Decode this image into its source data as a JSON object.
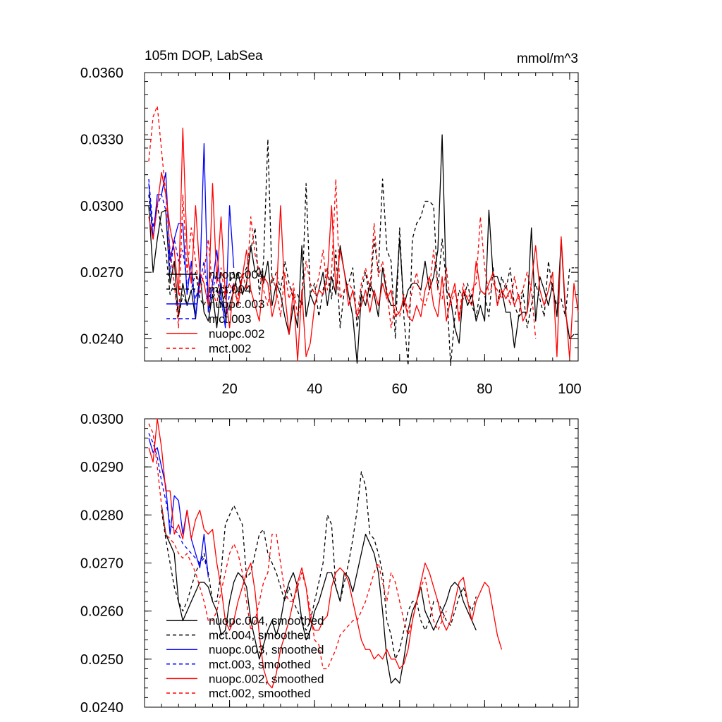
{
  "colors": {
    "black": "#000000",
    "blue": "#0000ff",
    "red": "#ff0000"
  },
  "chart_data": [
    {
      "type": "line",
      "title": "105m DOP, LabSea",
      "units": "mmol/m^3",
      "xlim": [
        0,
        102
      ],
      "ylim": [
        0.023,
        0.036
      ],
      "yticks": [
        0.024,
        0.027,
        0.03,
        0.033,
        0.036
      ],
      "ytick_labels": [
        "0.0240",
        "0.0270",
        "0.0300",
        "0.0330",
        "0.0360"
      ],
      "xticks": [
        20,
        40,
        60,
        80,
        100
      ],
      "xtick_labels": [
        "20",
        "40",
        "60",
        "80",
        "100"
      ],
      "legend": "bottom-left",
      "series": [
        {
          "name": "nuopc.004",
          "color": "black",
          "dash": "solid",
          "x_start": 1,
          "values": [
            0.03,
            0.027,
            0.0285,
            0.0297,
            0.0298,
            0.0265,
            0.0275,
            0.025,
            0.0265,
            0.0255,
            0.0262,
            0.0249,
            0.027,
            0.0252,
            0.0248,
            0.026,
            0.0245,
            0.0265,
            0.025,
            0.0255,
            0.0262,
            0.027,
            0.026,
            0.0265,
            0.0282,
            0.027,
            0.0272,
            0.0265,
            0.0275,
            0.0255,
            0.0265,
            0.026,
            0.025,
            0.0242,
            0.0255,
            0.0245,
            0.0282,
            0.025,
            0.026,
            0.0255,
            0.0262,
            0.027,
            0.0255,
            0.0268,
            0.026,
            0.0282,
            0.027,
            0.026,
            0.025,
            0.0229,
            0.026,
            0.0255,
            0.0265,
            0.026,
            0.025,
            0.0272,
            0.026,
            0.0255,
            0.0255,
            0.0285,
            0.0255,
            0.0262,
            0.0265,
            0.0265,
            0.0262,
            0.0275,
            0.0262,
            0.0268,
            0.028,
            0.0332,
            0.0262,
            0.0258,
            0.0245,
            0.0238,
            0.0262,
            0.0255,
            0.026,
            0.0248,
            0.0255,
            0.0248,
            0.0298,
            0.0268,
            0.0268,
            0.0262,
            0.0252,
            0.0252,
            0.0236,
            0.025,
            0.0252,
            0.0252,
            0.029,
            0.0248,
            0.0268,
            0.0262,
            0.0255,
            0.0265,
            0.025,
            0.0285,
            0.0252,
            0.024,
            0.0242
          ]
        },
        {
          "name": "mct.004",
          "color": "black",
          "dash": "dashed",
          "x_start": 1,
          "values": [
            0.0305,
            0.0285,
            0.03,
            0.029,
            0.028,
            0.026,
            0.0265,
            0.025,
            0.026,
            0.0255,
            0.0262,
            0.027,
            0.0258,
            0.0255,
            0.026,
            0.0258,
            0.0262,
            0.0255,
            0.026,
            0.0265,
            0.027,
            0.026,
            0.0268,
            0.0272,
            0.028,
            0.029,
            0.026,
            0.0275,
            0.033,
            0.0265,
            0.027,
            0.0262,
            0.0275,
            0.0265,
            0.0258,
            0.026,
            0.0255,
            0.031,
            0.026,
            0.0265,
            0.025,
            0.0262,
            0.0272,
            0.0258,
            0.028,
            0.0245,
            0.0262,
            0.0265,
            0.0272,
            0.0245,
            0.0262,
            0.027,
            0.0258,
            0.0285,
            0.027,
            0.0312,
            0.028,
            0.0275,
            0.024,
            0.029,
            0.025,
            0.0228,
            0.0285,
            0.0292,
            0.0295,
            0.0302,
            0.0302,
            0.03,
            0.0262,
            0.0285,
            0.0265,
            0.0228,
            0.025,
            0.0262,
            0.0258,
            0.0265,
            0.0255,
            0.025,
            0.0262,
            0.026,
            0.025,
            0.0272,
            0.0255,
            0.0268,
            0.0262,
            0.0272,
            0.0255,
            0.025,
            0.0262,
            0.0245,
            0.0255,
            0.0265,
            0.0258,
            0.025,
            0.0275,
            0.0262,
            0.0255,
            0.0258,
            0.025,
            0.0272,
            0.0272
          ]
        },
        {
          "name": "nuopc.003",
          "color": "blue",
          "dash": "solid",
          "x_start": 1,
          "values": [
            0.031,
            0.0285,
            0.0305,
            0.0305,
            0.0315,
            0.0275,
            0.0285,
            0.0292,
            0.0292,
            0.026,
            0.0275,
            0.025,
            0.0265,
            0.0328,
            0.0252,
            0.0265,
            0.028,
            0.026,
            0.0245,
            0.03,
            0.0272
          ]
        },
        {
          "name": "mct.003",
          "color": "blue",
          "dash": "dashed",
          "x_start": 1,
          "values": [
            0.0312,
            0.029,
            0.03,
            0.0305,
            0.0298,
            0.027,
            0.0285,
            0.0275,
            0.028,
            0.0265,
            0.027,
            0.0258,
            0.0265,
            0.0275,
            0.0258,
            0.0262,
            0.027,
            0.0255,
            0.025,
            0.026,
            0.0265
          ]
        },
        {
          "name": "nuopc.002",
          "color": "red",
          "dash": "solid",
          "x_start": 1,
          "values": [
            0.0295,
            0.0285,
            0.03,
            0.0315,
            0.0305,
            0.029,
            0.028,
            0.026,
            0.0335,
            0.028,
            0.0265,
            0.03,
            0.027,
            0.0265,
            0.0255,
            0.031,
            0.0265,
            0.0295,
            0.026,
            0.0245,
            0.0265,
            0.0255,
            0.0268,
            0.028,
            0.0262,
            0.0255,
            0.0248,
            0.0268,
            0.0265,
            0.025,
            0.0258,
            0.03,
            0.026,
            0.0242,
            0.0262,
            0.023,
            0.0262,
            0.0232,
            0.0238,
            0.0255,
            0.0262,
            0.026,
            0.0268,
            0.03,
            0.0262,
            0.028,
            0.027,
            0.0255,
            0.0262,
            0.025,
            0.0255,
            0.0262,
            0.0252,
            0.0262,
            0.0255,
            0.0265,
            0.0258,
            0.0262,
            0.025,
            0.0252,
            0.0258,
            0.025,
            0.0248,
            0.0255,
            0.025,
            0.0262,
            0.0268,
            0.0255,
            0.025,
            0.0268,
            0.0248,
            0.0258,
            0.0265,
            0.0248,
            0.0262,
            0.0258,
            0.0255,
            0.0275,
            0.0262,
            0.026,
            0.0265,
            0.027,
            0.0255,
            0.0262,
            0.0258,
            0.0262,
            0.0255,
            0.026,
            0.0248,
            0.0252,
            0.0265,
            0.0282,
            0.0262,
            0.0255,
            0.0262,
            0.027,
            0.0232,
            0.0286,
            0.0255,
            0.0231,
            0.0265,
            0.0252
          ]
        },
        {
          "name": "mct.002",
          "color": "red",
          "dash": "dashed",
          "x_start": 1,
          "values": [
            0.032,
            0.034,
            0.0345,
            0.0325,
            0.0305,
            0.028,
            0.0265,
            0.0245,
            0.0305,
            0.027,
            0.029,
            0.0275,
            0.026,
            0.027,
            0.0285,
            0.0262,
            0.0255,
            0.0272,
            0.0258,
            0.0265,
            0.026,
            0.0258,
            0.027,
            0.0262,
            0.0295,
            0.0278,
            0.027,
            0.0262,
            0.0255,
            0.0268,
            0.0262,
            0.025,
            0.027,
            0.0258,
            0.0265,
            0.025,
            0.0258,
            0.0275,
            0.0265,
            0.026,
            0.0268,
            0.028,
            0.0262,
            0.027,
            0.0312,
            0.0258,
            0.0262,
            0.0265,
            0.0262,
            0.025,
            0.0265,
            0.0272,
            0.0262,
            0.0292,
            0.0268,
            0.0275,
            0.0262,
            0.0245,
            0.0255,
            0.025,
            0.026,
            0.0252,
            0.0262,
            0.027,
            0.0258,
            0.0255,
            0.0262,
            0.028,
            0.0262,
            0.0258,
            0.0272,
            0.0255,
            0.0262,
            0.025,
            0.0265,
            0.0258,
            0.0262,
            0.0265,
            0.0295,
            0.0272,
            0.026,
            0.0265,
            0.0262,
            0.0258,
            0.0265,
            0.0255,
            0.0268,
            0.0258,
            0.0262,
            0.027,
            0.0262,
            0.024
          ]
        }
      ]
    },
    {
      "type": "line",
      "title": "",
      "xlim": [
        0,
        102
      ],
      "ylim": [
        0.024,
        0.03
      ],
      "yticks": [
        0.024,
        0.025,
        0.026,
        0.027,
        0.028,
        0.029,
        0.03
      ],
      "ytick_labels": [
        "0.0240",
        "0.0250",
        "0.0260",
        "0.0270",
        "0.0280",
        "0.0290",
        "0.0300"
      ],
      "xticks": [
        20,
        40,
        60,
        80,
        100
      ],
      "legend": "bottom-left",
      "series": [
        {
          "name": "nuopc.004, smoothed",
          "color": "black",
          "dash": "solid",
          "x_start": 4,
          "values": [
            0.0282,
            0.0276,
            0.0274,
            0.0272,
            0.0262,
            0.0258,
            0.026,
            0.0262,
            0.0264,
            0.0266,
            0.0266,
            0.0265,
            0.0262,
            0.026,
            0.0255,
            0.0256,
            0.0262,
            0.0266,
            0.0268,
            0.0267,
            0.0265,
            0.0258,
            0.0254,
            0.025,
            0.0253,
            0.0256,
            0.0258,
            0.0255,
            0.0258,
            0.0263,
            0.0266,
            0.0268,
            0.0265,
            0.0258,
            0.0254,
            0.0256,
            0.026,
            0.0262,
            0.0265,
            0.0268,
            0.0268,
            0.0265,
            0.0262,
            0.0268,
            0.0267,
            0.0264,
            0.0268,
            0.0272,
            0.0276,
            0.0274,
            0.0272,
            0.0268,
            0.026,
            0.025,
            0.0245,
            0.0246,
            0.0245,
            0.025,
            0.0256,
            0.026,
            0.0262,
            0.0265,
            0.026,
            0.0258,
            0.0256,
            0.0258,
            0.026,
            0.0262,
            0.0265,
            0.0266,
            0.0265,
            0.0262,
            0.026,
            0.0258,
            0.0256
          ]
        },
        {
          "name": "mct.004, smoothed",
          "color": "black",
          "dash": "dashed",
          "x_start": 4,
          "values": [
            0.0281,
            0.0275,
            0.027,
            0.0265,
            0.0262,
            0.026,
            0.0262,
            0.0265,
            0.0268,
            0.027,
            0.0272,
            0.0268,
            0.0262,
            0.0262,
            0.0268,
            0.0278,
            0.028,
            0.0282,
            0.028,
            0.0278,
            0.0267,
            0.0268,
            0.0272,
            0.0276,
            0.0277,
            0.0272,
            0.027,
            0.0268,
            0.0265,
            0.0262,
            0.0265,
            0.0262,
            0.026,
            0.0258,
            0.0256,
            0.0258,
            0.0262,
            0.0266,
            0.027,
            0.028,
            0.0278,
            0.0265,
            0.0262,
            0.0266,
            0.027,
            0.0275,
            0.0281,
            0.0289,
            0.0286,
            0.0276,
            0.0275,
            0.0272,
            0.0268,
            0.0258,
            0.0255,
            0.025,
            0.0252,
            0.0256,
            0.026,
            0.0262,
            0.0262,
            0.0258,
            0.0256,
            0.0258,
            0.0262,
            0.0262,
            0.026,
            0.0258,
            0.0257,
            0.026,
            0.0263,
            0.0265,
            0.0262,
            0.026,
            0.0263
          ]
        },
        {
          "name": "nuopc.003, smoothed",
          "color": "blue",
          "dash": "solid",
          "x_start": 1,
          "values": [
            0.0296,
            0.0293,
            0.0294,
            0.029,
            0.0286,
            0.0276,
            0.0284,
            0.0283,
            0.0276,
            0.0281,
            0.0275,
            0.0272,
            0.0269,
            0.0276,
            0.0267
          ]
        },
        {
          "name": "mct.003, smoothed",
          "color": "blue",
          "dash": "dashed",
          "x_start": 1,
          "values": [
            0.0297,
            0.0295,
            0.0292,
            0.0287,
            0.0283,
            0.0278,
            0.0277,
            0.0276,
            0.0274,
            0.0273,
            0.0272,
            0.0271,
            0.027,
            0.0271,
            0.0268
          ]
        },
        {
          "name": "nuopc.002, smoothed",
          "color": "red",
          "dash": "solid",
          "x_start": 1,
          "values": [
            0.0294,
            0.0291,
            0.03,
            0.0294,
            0.0285,
            0.0285,
            0.0276,
            0.0278,
            0.0275,
            0.0281,
            0.0275,
            0.0279,
            0.0281,
            0.0277,
            0.0276,
            0.0277,
            0.027,
            0.0265,
            0.0258,
            0.0256,
            0.0258,
            0.0262,
            0.0265,
            0.0268,
            0.027,
            0.0264,
            0.0255,
            0.0248,
            0.0245,
            0.0244,
            0.0247,
            0.0252,
            0.0255,
            0.0258,
            0.0262,
            0.0266,
            0.0269,
            0.0265,
            0.0258,
            0.0256,
            0.0256,
            0.0258,
            0.0259,
            0.0265,
            0.0268,
            0.0269,
            0.0268,
            0.0266,
            0.0262,
            0.0258,
            0.0254,
            0.0252,
            0.0252,
            0.025,
            0.0251,
            0.025,
            0.0252,
            0.025,
            0.025,
            0.0248,
            0.0249,
            0.0252,
            0.0258,
            0.0262,
            0.0266,
            0.027,
            0.0268,
            0.0265,
            0.0262,
            0.0258,
            0.0256,
            0.0258,
            0.0262,
            0.0266,
            0.0267,
            0.0262,
            0.0258,
            0.0262,
            0.0264,
            0.0266,
            0.0265,
            0.026,
            0.0255,
            0.0252
          ]
        },
        {
          "name": "mct.002, smoothed",
          "color": "red",
          "dash": "dashed",
          "x_start": 1,
          "values": [
            0.0299,
            0.0297,
            0.029,
            0.0282,
            0.0276,
            0.0275,
            0.0274,
            0.0272,
            0.0271,
            0.0272,
            0.027,
            0.0268,
            0.0265,
            0.0262,
            0.0258,
            0.0258,
            0.026,
            0.0264,
            0.0268,
            0.0272,
            0.0274,
            0.0272,
            0.0268,
            0.0262,
            0.0256,
            0.0258,
            0.0262,
            0.0266,
            0.0268,
            0.0276,
            0.0276,
            0.027,
            0.0264,
            0.0262,
            0.0262,
            0.0265,
            0.0268,
            0.0265,
            0.026,
            0.0254,
            0.0253,
            0.0248,
            0.0248,
            0.025,
            0.0252,
            0.0255,
            0.0256,
            0.0257,
            0.0258,
            0.0258,
            0.026,
            0.0262,
            0.0265,
            0.0268,
            0.027,
            0.0266,
            0.0262,
            0.0268,
            0.0266,
            0.0262,
            0.0258,
            0.0255,
            0.0258,
            0.0262,
            0.0265,
            0.0267,
            0.0262,
            0.0258,
            0.0256,
            0.0258,
            0.026
          ]
        }
      ]
    }
  ]
}
